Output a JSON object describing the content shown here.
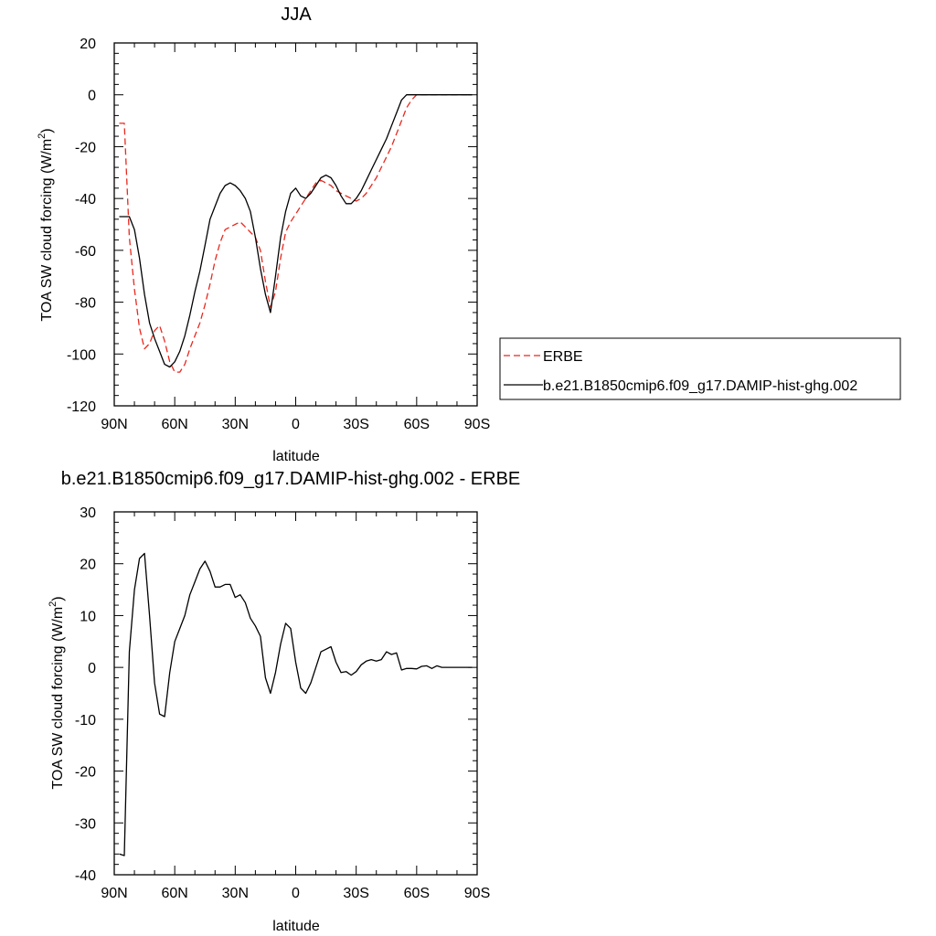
{
  "chart_data": [
    {
      "type": "line",
      "title": "JJA",
      "xlabel": "latitude",
      "ylabel": "TOA SW cloud forcing (W/m",
      "ylabel_sup": "2",
      "ylabel_tail": ")",
      "xlim": [
        90,
        -90
      ],
      "ylim": [
        -120,
        20
      ],
      "xticks": [
        90,
        60,
        30,
        0,
        -30,
        -60,
        -90
      ],
      "xtick_labels": [
        "90N",
        "60N",
        "30N",
        "0",
        "30S",
        "60S",
        "90S"
      ],
      "yticks": [
        20,
        0,
        -20,
        -40,
        -60,
        -80,
        -100,
        -120
      ],
      "ytick_labels": [
        "20",
        "0",
        "-20",
        "-40",
        "-60",
        "-80",
        "-100",
        "-120"
      ],
      "legend_position": "right",
      "series": [
        {
          "name": "ERBE",
          "color": "#e8281e",
          "dash": "dashed",
          "x": [
            87.5,
            85,
            82.5,
            80,
            77.5,
            75,
            72.5,
            70,
            67.5,
            65,
            62.5,
            60,
            57.5,
            55,
            52.5,
            50,
            47.5,
            45,
            42.5,
            40,
            37.5,
            35,
            32.5,
            30,
            27.5,
            25,
            22.5,
            20,
            17.5,
            15,
            12.5,
            10,
            7.5,
            5,
            2.5,
            0,
            -2.5,
            -5,
            -7.5,
            -10,
            -12.5,
            -15,
            -17.5,
            -20,
            -22.5,
            -25,
            -27.5,
            -30,
            -32.5,
            -35,
            -37.5,
            -40,
            -42.5,
            -45,
            -47.5,
            -50,
            -52.5,
            -55,
            -57.5,
            -60,
            -62.5,
            -65,
            -67.5,
            -70,
            -72.5,
            -75,
            -77.5,
            -80,
            -82.5,
            -85,
            -87.5
          ],
          "y": [
            -11,
            -11,
            -55,
            -75,
            -90,
            -98,
            -96,
            -91,
            -89,
            -95,
            -103,
            -107,
            -107,
            -104,
            -98,
            -93,
            -88,
            -81,
            -73,
            -64,
            -57,
            -52,
            -51,
            -50,
            -49,
            -51,
            -53,
            -55,
            -60,
            -72,
            -82,
            -76,
            -63,
            -53,
            -49,
            -46,
            -43,
            -40,
            -37,
            -34,
            -33,
            -34,
            -35,
            -37,
            -38,
            -39,
            -40,
            -41,
            -40,
            -38,
            -35,
            -32,
            -28,
            -24,
            -20,
            -15,
            -10,
            -5,
            -2,
            0,
            0,
            0,
            0,
            0,
            0,
            0,
            0,
            0,
            0,
            0,
            0
          ]
        },
        {
          "name": "b.e21.B1850cmip6.f09_g17.DAMIP-hist-ghg.002",
          "color": "#000000",
          "dash": "solid",
          "x": [
            87.5,
            85,
            82.5,
            80,
            77.5,
            75,
            72.5,
            70,
            67.5,
            65,
            62.5,
            60,
            57.5,
            55,
            52.5,
            50,
            47.5,
            45,
            42.5,
            40,
            37.5,
            35,
            32.5,
            30,
            27.5,
            25,
            22.5,
            20,
            17.5,
            15,
            12.5,
            10,
            7.5,
            5,
            2.5,
            0,
            -2.5,
            -5,
            -7.5,
            -10,
            -12.5,
            -15,
            -17.5,
            -20,
            -22.5,
            -25,
            -27.5,
            -30,
            -32.5,
            -35,
            -37.5,
            -40,
            -42.5,
            -45,
            -47.5,
            -50,
            -52.5,
            -55,
            -57.5,
            -60,
            -62.5,
            -65,
            -67.5,
            -70,
            -72.5,
            -75,
            -77.5,
            -80,
            -82.5,
            -85,
            -87.5
          ],
          "y": [
            -47,
            -47,
            -47,
            -52,
            -63,
            -77,
            -88,
            -94,
            -99,
            -104,
            -105,
            -103,
            -99,
            -93,
            -85,
            -76,
            -68,
            -58,
            -48,
            -43,
            -38,
            -35,
            -34,
            -35,
            -37,
            -40,
            -45,
            -55,
            -67,
            -77,
            -84,
            -70,
            -55,
            -45,
            -38,
            -36,
            -39,
            -40,
            -38,
            -35,
            -32,
            -31,
            -32,
            -35,
            -39,
            -42,
            -42,
            -40,
            -37,
            -33,
            -29,
            -25,
            -21,
            -17,
            -12,
            -7,
            -2,
            0,
            0,
            0,
            0,
            0,
            0,
            0,
            0,
            0,
            0,
            0,
            0,
            0,
            0
          ]
        }
      ]
    },
    {
      "type": "line",
      "title": "b.e21.B1850cmip6.f09_g17.DAMIP-hist-ghg.002 - ERBE",
      "xlabel": "latitude",
      "ylabel": "TOA SW cloud forcing (W/m",
      "ylabel_sup": "2",
      "ylabel_tail": ")",
      "xlim": [
        90,
        -90
      ],
      "ylim": [
        -40,
        30
      ],
      "xticks": [
        90,
        60,
        30,
        0,
        -30,
        -60,
        -90
      ],
      "xtick_labels": [
        "90N",
        "60N",
        "30N",
        "0",
        "30S",
        "60S",
        "90S"
      ],
      "yticks": [
        30,
        20,
        10,
        0,
        -10,
        -20,
        -30,
        -40
      ],
      "ytick_labels": [
        "30",
        "20",
        "10",
        "0",
        "-10",
        "-20",
        "-30",
        "-40"
      ],
      "series": [
        {
          "color": "#000000",
          "dash": "solid",
          "x": [
            87.5,
            85,
            82.5,
            80,
            77.5,
            75,
            72.5,
            70,
            67.5,
            65,
            62.5,
            60,
            57.5,
            55,
            52.5,
            50,
            47.5,
            45,
            42.5,
            40,
            37.5,
            35,
            32.5,
            30,
            27.5,
            25,
            22.5,
            20,
            17.5,
            15,
            12.5,
            10,
            7.5,
            5,
            2.5,
            0,
            -2.5,
            -5,
            -7.5,
            -10,
            -12.5,
            -15,
            -17.5,
            -20,
            -22.5,
            -25,
            -27.5,
            -30,
            -32.5,
            -35,
            -37.5,
            -40,
            -42.5,
            -45,
            -47.5,
            -50,
            -52.5,
            -55,
            -57.5,
            -60,
            -62.5,
            -65,
            -67.5,
            -70,
            -72.5,
            -75,
            -77.5,
            -80,
            -82.5,
            -85,
            -87.5
          ],
          "y": [
            -36,
            -36.3,
            3,
            15,
            21,
            22,
            10,
            -3,
            -9,
            -9.5,
            -1,
            5,
            7.5,
            10,
            14,
            16.5,
            19,
            20.5,
            18.5,
            15.5,
            15.5,
            16,
            16,
            13.5,
            14,
            12.5,
            9.5,
            8,
            6,
            -2,
            -5,
            -1,
            4.5,
            8.5,
            7.5,
            1,
            -4,
            -5,
            -3,
            0,
            3,
            3.5,
            4,
            1,
            -1,
            -0.8,
            -1.5,
            -0.8,
            0.5,
            1.2,
            1.5,
            1.2,
            1.5,
            3,
            2.5,
            2.8,
            -0.5,
            -0.2,
            -0.2,
            -0.3,
            0.2,
            0.3,
            -0.2,
            0.3,
            0,
            0,
            0,
            0,
            0,
            0,
            0
          ]
        }
      ]
    }
  ]
}
